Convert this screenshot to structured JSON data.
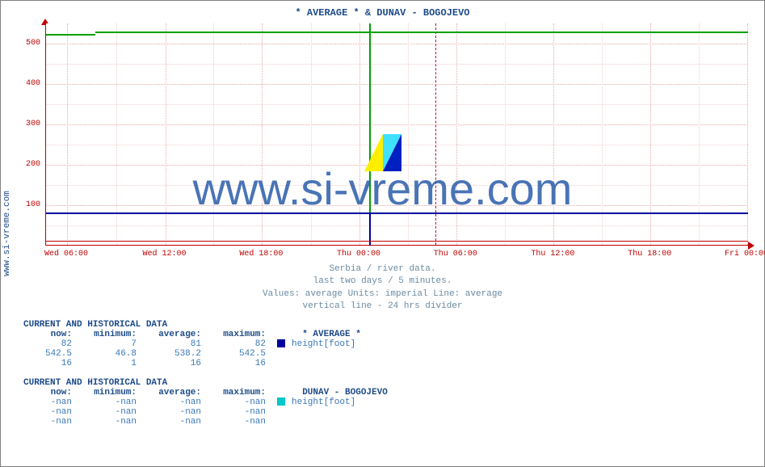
{
  "side_label": "www.si-vreme.com",
  "title": "* AVERAGE * &  DUNAV -  BOGOJEVO",
  "watermark": "www.si-vreme.com",
  "chart": {
    "type": "line",
    "ylim": [
      0,
      550
    ],
    "yticks": [
      100,
      200,
      300,
      400,
      500
    ],
    "xticks": [
      "Wed 06:00",
      "Wed 12:00",
      "Wed 18:00",
      "Thu 00:00",
      "Thu 06:00",
      "Thu 12:00",
      "Thu 18:00",
      "Fri 00:00"
    ],
    "xtick_pct": [
      3.0,
      17.0,
      30.8,
      44.7,
      58.5,
      72.4,
      86.2,
      100.0
    ],
    "divider_pct": 55.5,
    "spike_pct": 46.0,
    "series": [
      {
        "name": "AVERAGE height[foot]",
        "color": "#00a000",
        "level": 530,
        "step_before": 525,
        "step_at_pct": 7.0
      },
      {
        "name": "DUNAV BOGOJEVO height[foot]",
        "color": "#0000a0",
        "level": 82
      }
    ],
    "axis_color": "#c00000",
    "grid_color": "#e8a8a8",
    "grid_minor_color": "#f2d0d0",
    "background": "#ffffff"
  },
  "meta": {
    "l1": "Serbia / river data.",
    "l2": "last two days / 5 minutes.",
    "l3": "Values: average  Units: imperial  Line: average",
    "l4": "vertical line - 24 hrs  divider"
  },
  "tables": [
    {
      "header": "CURRENT AND HISTORICAL DATA",
      "cols": {
        "c1": "now:",
        "c2": "minimum:",
        "c3": "average:",
        "c4": "maximum:"
      },
      "series_label": "* AVERAGE *",
      "unit_label": "height[foot]",
      "swatch": "#0000a0",
      "rows": [
        [
          "82",
          "7",
          "81",
          "82"
        ],
        [
          "542.5",
          "46.8",
          "538.2",
          "542.5"
        ],
        [
          "16",
          "1",
          "16",
          "16"
        ]
      ]
    },
    {
      "header": "CURRENT AND HISTORICAL DATA",
      "cols": {
        "c1": "now:",
        "c2": "minimum:",
        "c3": "average:",
        "c4": "maximum:"
      },
      "series_label": "DUNAV -  BOGOJEVO",
      "unit_label": "height[foot]",
      "swatch": "#00c8c8",
      "rows": [
        [
          "-nan",
          "-nan",
          "-nan",
          "-nan"
        ],
        [
          "-nan",
          "-nan",
          "-nan",
          "-nan"
        ],
        [
          "-nan",
          "-nan",
          "-nan",
          "-nan"
        ]
      ]
    }
  ]
}
